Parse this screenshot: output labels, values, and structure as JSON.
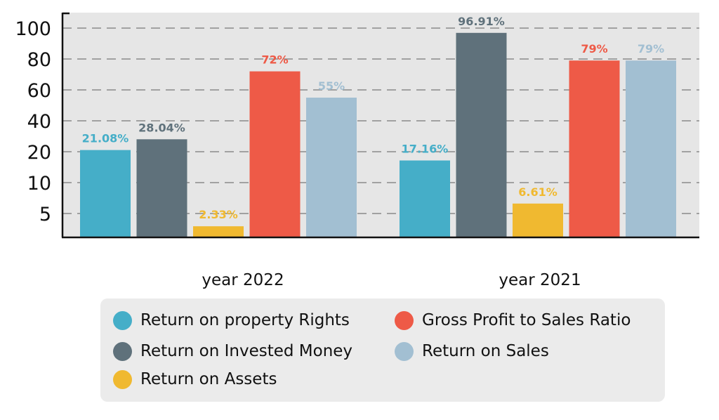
{
  "chart_data": {
    "type": "bar",
    "categories": [
      "year 2022",
      "year 2021"
    ],
    "yticks": [
      "100",
      "80",
      "60",
      "40",
      "20",
      "10",
      "5"
    ],
    "grid": true,
    "grid_style": "dashed",
    "legend_placement": "bottom",
    "series": [
      {
        "name": "Return on property Rights",
        "color": "#45aec8",
        "values": [
          21.08,
          17.16
        ],
        "labels": [
          "21.08%",
          "17.16%"
        ]
      },
      {
        "name": "Return on Invested Money",
        "color": "#5f717b",
        "values": [
          28.04,
          96.91
        ],
        "labels": [
          "28.04%",
          "96.91%"
        ]
      },
      {
        "name": "Return on Assets",
        "color": "#f0b930",
        "values": [
          2.33,
          6.61
        ],
        "labels": [
          "2.33%",
          "6.61%"
        ]
      },
      {
        "name": "Gross Profit to Sales Ratio",
        "color": "#ee5a47",
        "values": [
          72,
          79
        ],
        "labels": [
          "72%",
          "79%"
        ]
      },
      {
        "name": "Return on Sales",
        "color": "#a2bfd2",
        "values": [
          55,
          79
        ],
        "labels": [
          "55%",
          "79%"
        ]
      }
    ]
  }
}
